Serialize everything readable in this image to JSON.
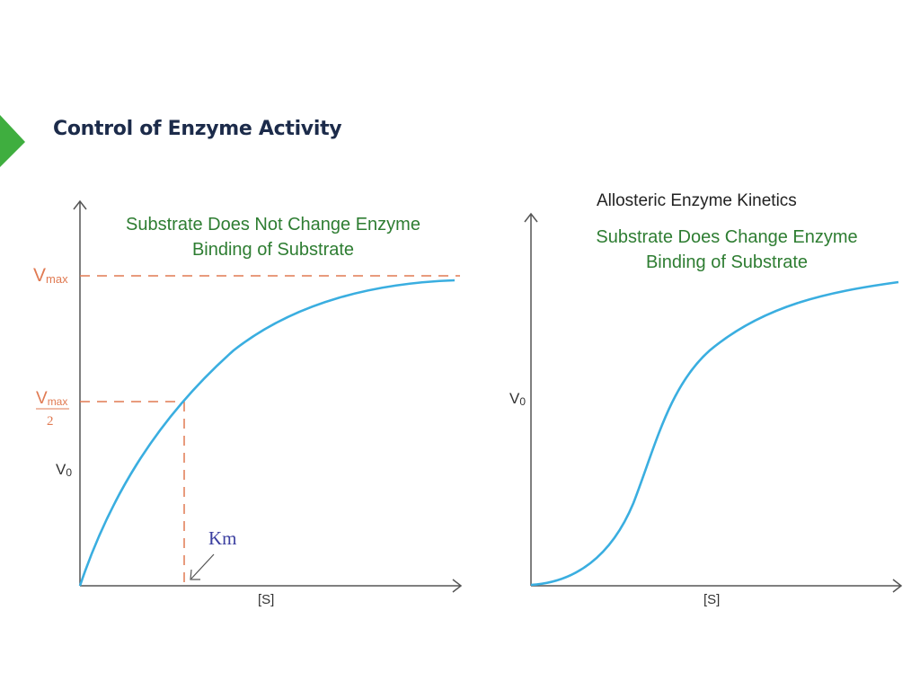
{
  "slide": {
    "title": "Control of Enzyme Activity",
    "accent_color": "#3fae3f"
  },
  "left_chart": {
    "caption_line1": "Substrate Does Not Change Enzyme",
    "caption_line2": "Binding of Substrate",
    "vmax_label": "V",
    "vmax_sub": "max",
    "half_vmax_label": "V",
    "half_vmax_sub": "max",
    "half_vmax_denominator": "2",
    "y_axis_label": "V",
    "y_axis_sub": "0",
    "x_axis_label": "[S]",
    "km_label": "Km",
    "guide_color": "#e07a52",
    "curve_color": "#3aaee0",
    "km_color": "#3b3fa0"
  },
  "right_chart": {
    "title": "Allosteric Enzyme Kinetics",
    "caption_line1": "Substrate Does Change Enzyme",
    "caption_line2": "Binding of Substrate",
    "y_axis_label": "V",
    "y_axis_sub": "0",
    "x_axis_label": "[S]",
    "curve_color": "#3aaee0"
  }
}
